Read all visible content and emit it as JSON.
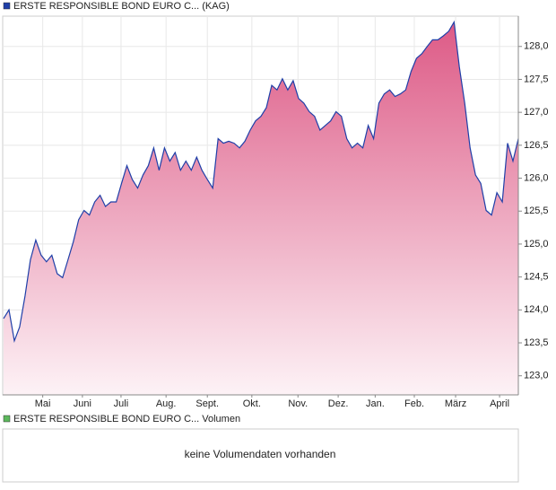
{
  "chart_data": {
    "type": "area",
    "series": [
      {
        "name": "ERSTE RESPONSIBLE BOND EURO C... (KAG)",
        "color": "#1f3fa8",
        "values": [
          123.87,
          124.0,
          123.53,
          123.74,
          124.21,
          124.76,
          125.06,
          124.83,
          124.73,
          124.83,
          124.55,
          124.49,
          124.76,
          125.03,
          125.37,
          125.51,
          125.44,
          125.64,
          125.74,
          125.57,
          125.64,
          125.64,
          125.92,
          126.19,
          125.98,
          125.85,
          126.05,
          126.19,
          126.46,
          126.12,
          126.46,
          126.26,
          126.39,
          126.12,
          126.26,
          126.12,
          126.32,
          126.12,
          125.98,
          125.85,
          126.6,
          126.53,
          126.56,
          126.53,
          126.46,
          126.56,
          126.73,
          126.87,
          126.94,
          127.07,
          127.41,
          127.34,
          127.51,
          127.34,
          127.48,
          127.21,
          127.14,
          127.01,
          126.94,
          126.73,
          126.8,
          126.87,
          127.01,
          126.94,
          126.6,
          126.46,
          126.53,
          126.46,
          126.8,
          126.6,
          127.14,
          127.28,
          127.34,
          127.24,
          127.28,
          127.34,
          127.62,
          127.82,
          127.89,
          128.0,
          128.1,
          128.1,
          128.16,
          128.23,
          128.37,
          127.69,
          127.14,
          126.46,
          126.05,
          125.92,
          125.51,
          125.44,
          125.78,
          125.64,
          126.53,
          126.26,
          126.6
        ]
      }
    ],
    "ylim": [
      122.71,
      128.46
    ],
    "yticks": [
      {
        "value": 123,
        "label": "123,0"
      },
      {
        "value": 123.5,
        "label": "123,5"
      },
      {
        "value": 124,
        "label": "124,0"
      },
      {
        "value": 124.5,
        "label": "124,5"
      },
      {
        "value": 125,
        "label": "125,0"
      },
      {
        "value": 125.5,
        "label": "125,5"
      },
      {
        "value": 126,
        "label": "126,0"
      },
      {
        "value": 126.5,
        "label": "126,5"
      },
      {
        "value": 127,
        "label": "127,0"
      },
      {
        "value": 127.5,
        "label": "127,5"
      },
      {
        "value": 128,
        "label": "128,0"
      }
    ],
    "xlim": [
      0,
      96
    ],
    "xticks": [
      {
        "value": 7.3,
        "label": "Mai"
      },
      {
        "value": 14.7,
        "label": "Juni"
      },
      {
        "value": 21.9,
        "label": "Juli"
      },
      {
        "value": 30.3,
        "label": "Aug."
      },
      {
        "value": 38,
        "label": "Sept."
      },
      {
        "value": 46.3,
        "label": "Okt."
      },
      {
        "value": 54.9,
        "label": "Nov."
      },
      {
        "value": 62.4,
        "label": "Dez."
      },
      {
        "value": 69.3,
        "label": "Jan."
      },
      {
        "value": 76.6,
        "label": "Feb."
      },
      {
        "value": 84.3,
        "label": "März"
      },
      {
        "value": 92.5,
        "label": "April"
      }
    ],
    "grid": true
  },
  "volume_panel": {
    "legend": "ERSTE RESPONSIBLE BOND EURO C... Volumen",
    "color": "#5cb85c",
    "message": "keine Volumendaten vorhanden"
  }
}
